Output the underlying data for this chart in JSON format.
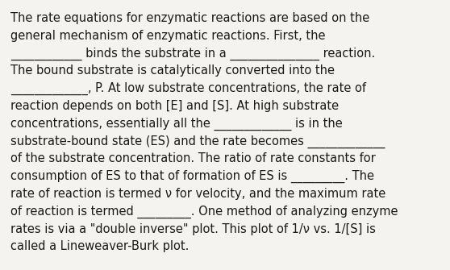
{
  "background_color": "#f5f3ef",
  "text_color": "#1a1a1a",
  "font_size": 10.5,
  "fig_width": 5.58,
  "fig_height": 3.35,
  "dpi": 100,
  "lines": [
    "The rate equations for enzymatic reactions are based on the",
    "general mechanism of enzymatic reactions. First, the",
    "____________ binds the substrate in a _______________ reaction.",
    "The bound substrate is catalytically converted into the",
    "_____________, P. At low substrate concentrations, the rate of",
    "reaction depends on both [E] and [S]. At high substrate",
    "concentrations, essentially all the _____________ is in the",
    "substrate-bound state (ES) and the rate becomes _____________",
    "of the substrate concentration. The ratio of rate constants for",
    "consumption of ES to that of formation of ES is _________. The",
    "rate of reaction is termed ν for velocity, and the maximum rate",
    "of reaction is termed _________. One method of analyzing enzyme",
    "rates is via a \"double inverse\" plot. This plot of 1/ν vs. 1/[S] is",
    "called a Lineweaver-Burk plot."
  ]
}
